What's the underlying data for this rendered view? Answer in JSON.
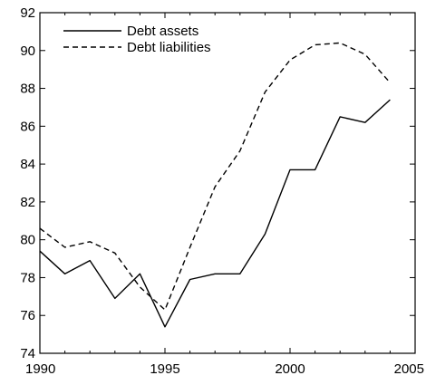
{
  "chart_data": {
    "type": "line",
    "title": "",
    "xlabel": "",
    "ylabel": "",
    "xlim": [
      1990,
      2005
    ],
    "ylim": [
      74,
      92
    ],
    "xticks": [
      1990,
      1995,
      2000,
      2005
    ],
    "yticks": [
      74,
      76,
      78,
      80,
      82,
      84,
      86,
      88,
      90,
      92
    ],
    "grid": false,
    "legend_position": "top-left",
    "x": [
      1990,
      1991,
      1992,
      1993,
      1994,
      1995,
      1996,
      1997,
      1998,
      1999,
      2000,
      2001,
      2002,
      2003,
      2004
    ],
    "series": [
      {
        "name": "Debt assets",
        "style": "solid",
        "color": "#000000",
        "values": [
          79.4,
          78.2,
          78.9,
          76.9,
          78.2,
          75.4,
          77.9,
          78.2,
          78.2,
          80.3,
          83.7,
          83.7,
          86.5,
          86.2,
          87.4
        ]
      },
      {
        "name": "Debt liabilities",
        "style": "dashed",
        "color": "#000000",
        "values": [
          80.6,
          79.6,
          79.9,
          79.3,
          77.5,
          76.3,
          79.6,
          82.8,
          84.7,
          87.8,
          89.5,
          90.3,
          90.4,
          89.8,
          88.3
        ]
      }
    ]
  }
}
